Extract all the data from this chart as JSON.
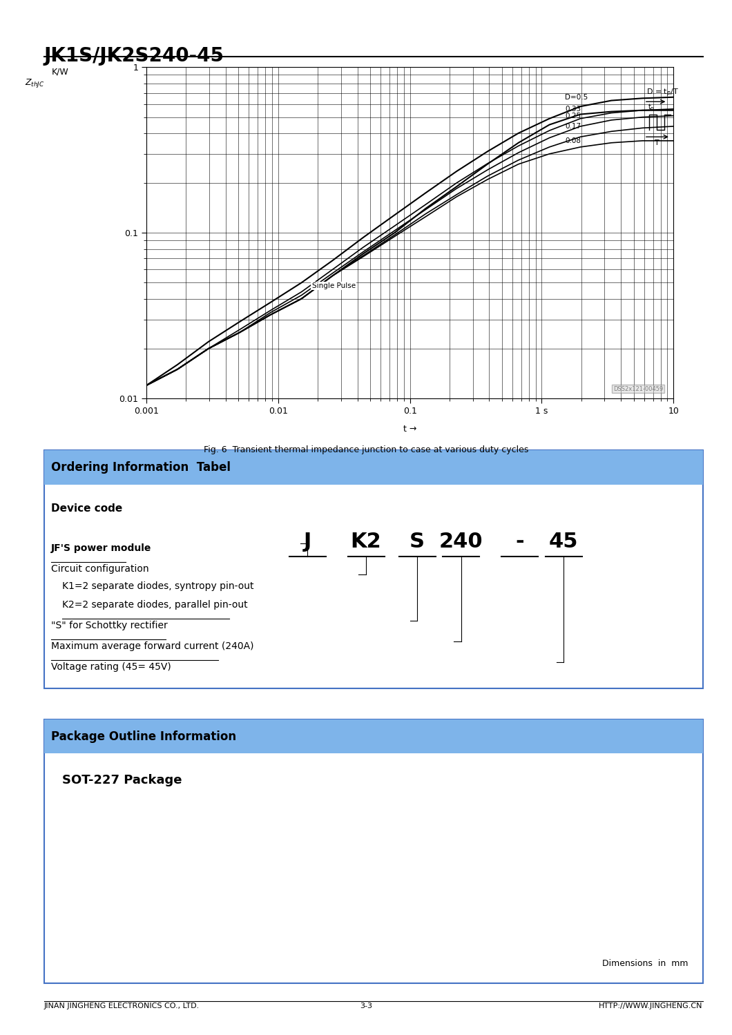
{
  "title": "JK1S/JK2S240-45",
  "fig_caption": "Fig. 6  Transient thermal impedance junction to case at various duty cycles",
  "ordering_header": "Ordering Information  Tabel",
  "ordering_header_bg": "#7EB4EA",
  "ordering_border": "#4472C4",
  "device_code_label": "Device code",
  "device_code": "J  K2  S  240 -  45",
  "device_parts": [
    "J",
    "K2",
    "S",
    "240",
    "-",
    "45"
  ],
  "ordering_rows": [
    "JF'S power module",
    "Circuit configuration",
    "K1=2 separate diodes, syntropy pin-out",
    "K2=2 separate diodes, parallel pin-out",
    "\"S\" for Schottky rectifier",
    "Maximum average forward current (240A)",
    "Voltage rating (45= 45V)"
  ],
  "underline_rows": [
    3,
    4,
    5,
    6
  ],
  "package_header": "Package Outline Information",
  "package_header_bg": "#7EB4EA",
  "package_border": "#4472C4",
  "sot_label": "SOT-227 Package",
  "footer_left": "JINAN JINGHENG ELECTRONICS CO., LTD.",
  "footer_center": "3-3",
  "footer_right": "HTTP://WWW.JINGHENG.CN",
  "bg_color": "#FFFFFF",
  "dim_note": "Dimensions  in  mm"
}
